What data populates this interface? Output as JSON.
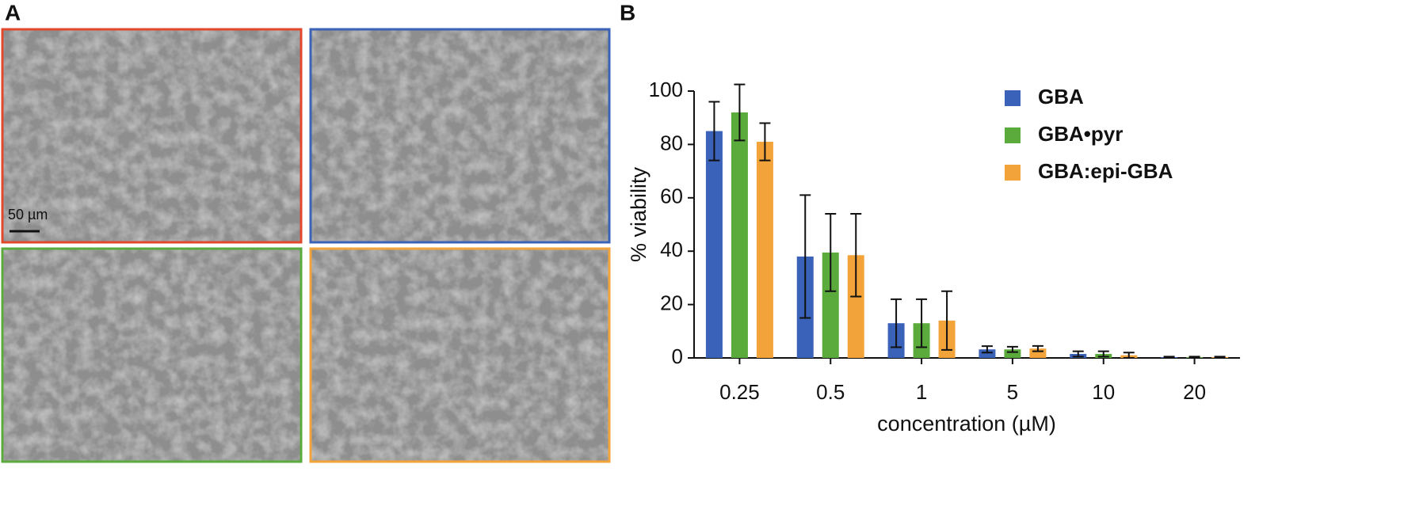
{
  "panel_labels": [
    "A",
    "B"
  ],
  "micrographs": {
    "scale_bar": "50 µm",
    "frame_colors": [
      "#e2492b",
      "#3a62b8",
      "#5aaa3c",
      "#f2a33a"
    ]
  },
  "chart_data": {
    "type": "bar",
    "xlabel": "concentration (µM)",
    "ylabel": "% viability",
    "categories": [
      "0.25",
      "0.5",
      "1",
      "5",
      "10",
      "20"
    ],
    "series": [
      {
        "name": "GBA",
        "color": "#3a62b8",
        "values": [
          85,
          38,
          13,
          3.2,
          1.5,
          0.3
        ],
        "errors": [
          11,
          23,
          9,
          1.2,
          1,
          0.2
        ]
      },
      {
        "name": "GBA•pyr",
        "color": "#5aaa3c",
        "values": [
          92,
          39.5,
          13,
          3.2,
          1.5,
          0.3
        ],
        "errors": [
          10.5,
          14.5,
          9,
          1,
          1,
          0.2
        ]
      },
      {
        "name": "GBA:epi-GBA",
        "color": "#f2a33a",
        "values": [
          81,
          38.5,
          14,
          3.5,
          1,
          0.3
        ],
        "errors": [
          7,
          15.5,
          11,
          1,
          1,
          0.2
        ]
      }
    ],
    "ylim": [
      0,
      100
    ],
    "yticks": [
      0,
      20,
      40,
      60,
      80,
      100
    ],
    "legend": "upper right"
  }
}
